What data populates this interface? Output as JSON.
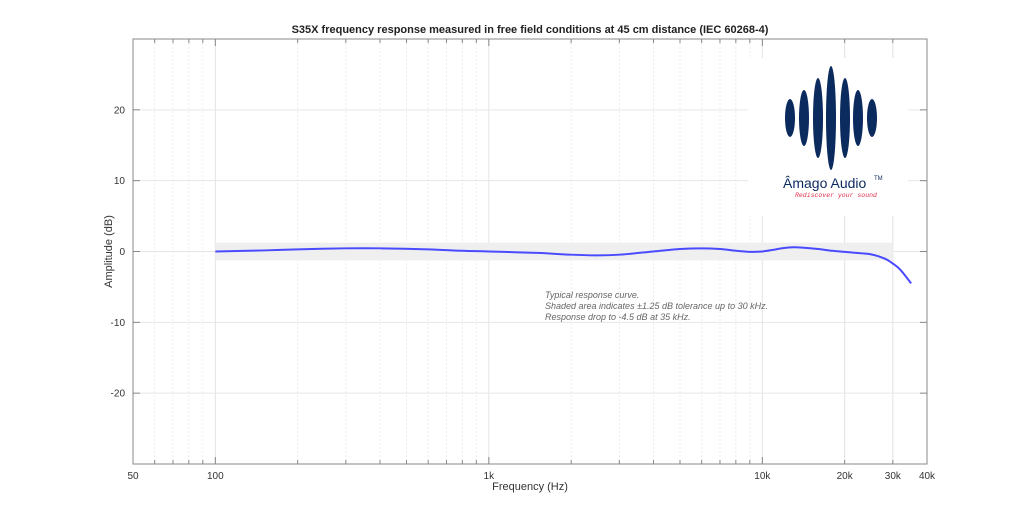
{
  "chart_data": {
    "type": "line",
    "title": "S35X frequency response measured in free field conditions at 45 cm distance (IEC 60268-4)",
    "xlabel": "Frequency (Hz)",
    "ylabel": "Amplitude (dB)",
    "xscale": "log",
    "xlim": [
      50,
      40000
    ],
    "ylim": [
      -30,
      30
    ],
    "grid": true,
    "x_ticks": [
      50,
      100,
      1000,
      10000,
      20000,
      30000,
      40000
    ],
    "x_tick_labels": [
      "50",
      "100",
      "1k",
      "10k",
      "20k",
      "30k",
      "40k"
    ],
    "y_ticks": [
      -20,
      -10,
      0,
      10,
      20
    ],
    "y_tick_labels": [
      "-20",
      "-10",
      "0",
      "10",
      "20"
    ],
    "series": [
      {
        "name": "Typical response",
        "color": "#4a4aff",
        "x": [
          100,
          150,
          200,
          300,
          400,
          600,
          800,
          1000,
          1500,
          2000,
          2500,
          3000,
          4000,
          5000,
          6000,
          7000,
          8000,
          9000,
          10000,
          11000,
          12000,
          13000,
          14000,
          16000,
          18000,
          20000,
          22000,
          25000,
          28000,
          30000,
          32000,
          35000
        ],
        "y": [
          0.0,
          0.15,
          0.3,
          0.45,
          0.45,
          0.3,
          0.1,
          0.0,
          -0.2,
          -0.45,
          -0.55,
          -0.45,
          0.0,
          0.35,
          0.45,
          0.35,
          0.1,
          -0.05,
          0.0,
          0.25,
          0.5,
          0.6,
          0.55,
          0.35,
          0.1,
          -0.05,
          -0.2,
          -0.4,
          -1.0,
          -1.7,
          -2.6,
          -4.5
        ]
      }
    ],
    "shaded_band": {
      "x": [
        100,
        30000
      ],
      "y": [
        -1.25,
        1.25
      ],
      "color": "#efefef"
    },
    "annotations": [
      "Typical response curve.",
      "Shaded area indicates ±1.25 dB tolerance up to 30 kHz.",
      "Response drop to -4.5 dB at 35 kHz."
    ]
  },
  "logo": {
    "brand": "Âmago Audio",
    "trademark": "TM",
    "tagline": "Rediscover your sound",
    "brand_color": "#0b2a5e",
    "tagline_color": "#e0304a"
  }
}
